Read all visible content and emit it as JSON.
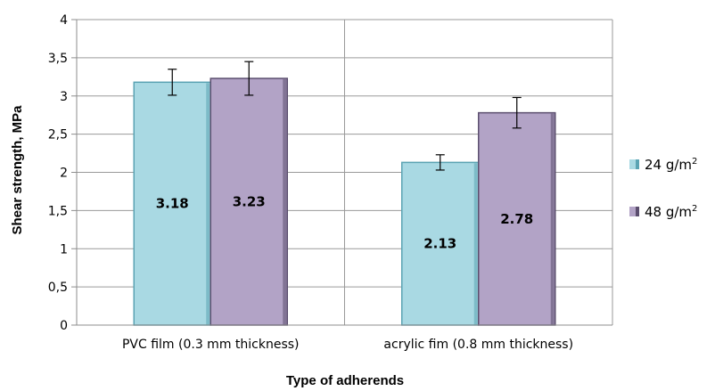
{
  "chart_data": {
    "type": "bar",
    "title": "",
    "xlabel": "Type of adherends",
    "ylabel": "Shear strength, MPa",
    "ylim": [
      0,
      4
    ],
    "y_ticks": [
      "0",
      "0,5",
      "1",
      "1,5",
      "2",
      "2,5",
      "3",
      "3,5",
      "4"
    ],
    "grid": true,
    "legend_position": "right",
    "categories": [
      "PVC film (0.3 mm thickness)",
      "acrylic fim (0.8 mm thickness)"
    ],
    "series": [
      {
        "name": "24 g/m²",
        "legend_base": "24 g/m",
        "legend_sup": "2",
        "values": [
          3.18,
          2.13
        ],
        "labels": [
          "3.18",
          "2.13"
        ],
        "error": [
          0.17,
          0.1
        ],
        "color": "#a9d9e3",
        "edge_color": "#5aa3b3"
      },
      {
        "name": "48 g/m²",
        "legend_base": "48 g/m",
        "legend_sup": "2",
        "values": [
          3.23,
          2.78
        ],
        "labels": [
          "3.23",
          "2.78"
        ],
        "error": [
          0.22,
          0.2
        ],
        "color": "#b2a3c6",
        "edge_color": "#5b4e6e"
      }
    ]
  }
}
